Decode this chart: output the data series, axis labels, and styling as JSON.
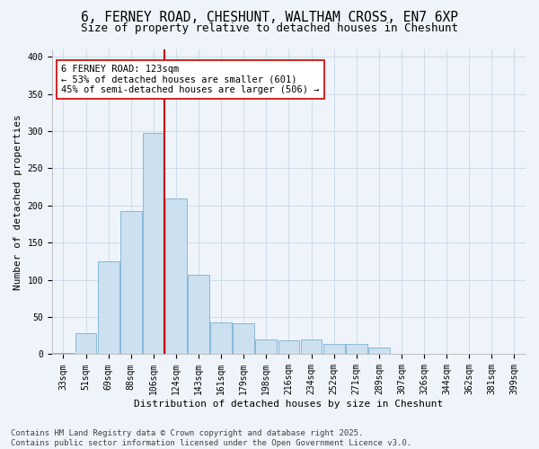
{
  "title_line1": "6, FERNEY ROAD, CHESHUNT, WALTHAM CROSS, EN7 6XP",
  "title_line2": "Size of property relative to detached houses in Cheshunt",
  "xlabel": "Distribution of detached houses by size in Cheshunt",
  "ylabel": "Number of detached properties",
  "categories": [
    "33sqm",
    "51sqm",
    "69sqm",
    "88sqm",
    "106sqm",
    "124sqm",
    "143sqm",
    "161sqm",
    "179sqm",
    "198sqm",
    "216sqm",
    "234sqm",
    "252sqm",
    "271sqm",
    "289sqm",
    "307sqm",
    "326sqm",
    "344sqm",
    "362sqm",
    "381sqm",
    "399sqm"
  ],
  "bar_heights": [
    2,
    28,
    125,
    192,
    298,
    210,
    107,
    43,
    42,
    20,
    19,
    20,
    14,
    14,
    9,
    1,
    1,
    0,
    0,
    1,
    0
  ],
  "bar_color": "#cce0f0",
  "bar_edge_color": "#88b8d8",
  "vline_color": "#cc0000",
  "annotation_text": "6 FERNEY ROAD: 123sqm\n← 53% of detached houses are smaller (601)\n45% of semi-detached houses are larger (506) →",
  "annotation_box_color": "white",
  "annotation_box_edge_color": "#cc0000",
  "ylim": [
    0,
    410
  ],
  "yticks": [
    0,
    50,
    100,
    150,
    200,
    250,
    300,
    350,
    400
  ],
  "grid_color": "#c8d8e8",
  "background_color": "#eef4fa",
  "plot_bg_color": "#eef4fa",
  "footer_text": "Contains HM Land Registry data © Crown copyright and database right 2025.\nContains public sector information licensed under the Open Government Licence v3.0.",
  "title_fontsize": 10.5,
  "subtitle_fontsize": 9,
  "label_fontsize": 8,
  "tick_fontsize": 7,
  "footer_fontsize": 6.5,
  "annot_fontsize": 7.5
}
